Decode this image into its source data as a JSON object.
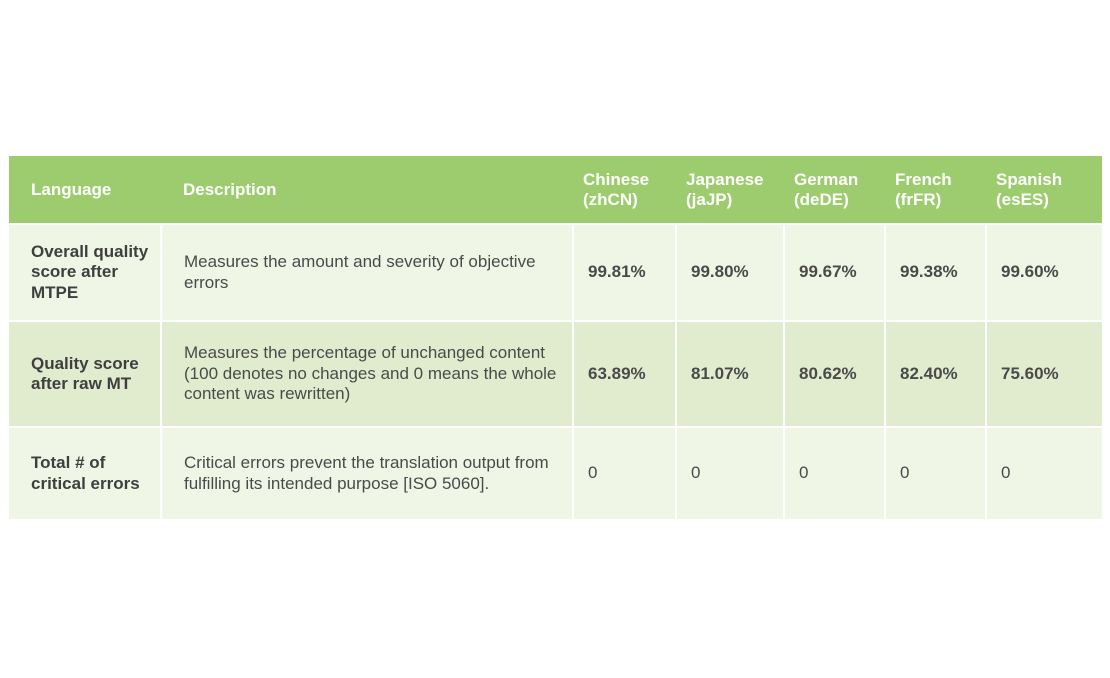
{
  "chart_data": {
    "type": "table",
    "columns": [
      "Language",
      "Description",
      "Chinese (zhCN)",
      "Japanese (jaJP)",
      "German (deDE)",
      "French (frFR)",
      "Spanish (esES)"
    ],
    "header": {
      "language": "Language",
      "description": "Description",
      "zh": "Chinese (zhCN)",
      "ja": "Japanese (jaJP)",
      "de": "German (deDE)",
      "fr": "French (frFR)",
      "es": "Spanish (esES)"
    },
    "rows": [
      {
        "label": "Overall quality score after MTPE",
        "description": "Measures the amount and severity of objective errors",
        "values": [
          "99.81%",
          "99.80%",
          "99.67%",
          "99.38%",
          "99.60%"
        ]
      },
      {
        "label": "Quality score after raw MT",
        "description": "Measures the percentage of unchanged content (100 denotes no changes and 0 means the whole content was rewritten)",
        "values": [
          "63.89%",
          "81.07%",
          "80.62%",
          "82.40%",
          "75.60%"
        ]
      },
      {
        "label": "Total # of critical errors",
        "description": "Critical errors prevent the translation output from fulfilling its intended purpose [ISO 5060].",
        "values": [
          "0",
          "0",
          "0",
          "0",
          "0"
        ]
      }
    ]
  },
  "colors": {
    "header_bg": "#9dcc6e",
    "row_light": "#eff6e6",
    "row_mid": "#e1eccf",
    "text": "#4a4a4a"
  }
}
